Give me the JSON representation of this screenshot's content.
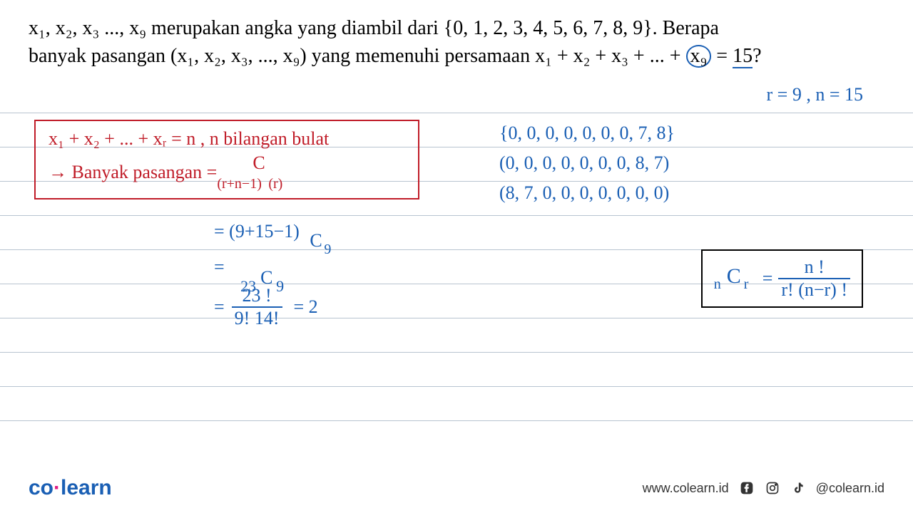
{
  "problem": {
    "line1_pre": "x₁, x₂, x₃ ..., x₉ merupakan angka yang diambil dari {0, 1, 2, 3, 4, 5, 6, 7, 8, 9}. Berapa",
    "line2_pre": "banyak pasangan (x₁, x₂, x₃, ..., x₉) yang memenuhi persamaan x₁ + x₂ + x₃ + ... + ",
    "circled": "x₉",
    "line2_post": " = ",
    "underlined": "15",
    "q": "?"
  },
  "notes": {
    "rn": "r = 9 ,  n = 15",
    "tuple1": "{0, 0, 0, 0, 0, 0, 0, 7, 8}",
    "tuple2": "(0, 0, 0, 0, 0, 0, 0, 8, 7)",
    "tuple3": "(8, 7, 0, 0, 0, 0, 0, 0, 0)"
  },
  "redbox": {
    "line1": "x₁ + x₂ + ... + xᵣ = n  ,   n bilangan bulat",
    "line2_label": "→ Banyak pasangan  = ",
    "comb_top": "C",
    "comb_left": "(r+n−1)",
    "comb_right": "(r)"
  },
  "calc": {
    "step1_left": "= (9+15−1)",
    "step1_C": "C",
    "step1_right": "9",
    "step2_eq": "=",
    "step2_left": "23",
    "step2_C": "C",
    "step2_right": "9",
    "frac_eq": "=",
    "frac_num": "23 !",
    "frac_den": "9!  14!",
    "result_eq": "= 2"
  },
  "comb_formula": {
    "left_n": "n",
    "C": "C",
    "left_r": "r",
    "eq": "=",
    "num": "n !",
    "den": "r! (n−r) !"
  },
  "footer": {
    "logo_co": "co",
    "logo_learn": "learn",
    "url": "www.colearn.id",
    "handle": "@colearn.id"
  },
  "style": {
    "line_spacing": 48,
    "line_count": 10,
    "line_start_top": 0,
    "colors": {
      "blue": "#1a5fb4",
      "red": "#c01c28",
      "line": "#b8c4d0",
      "pink": "#e01b84"
    }
  }
}
